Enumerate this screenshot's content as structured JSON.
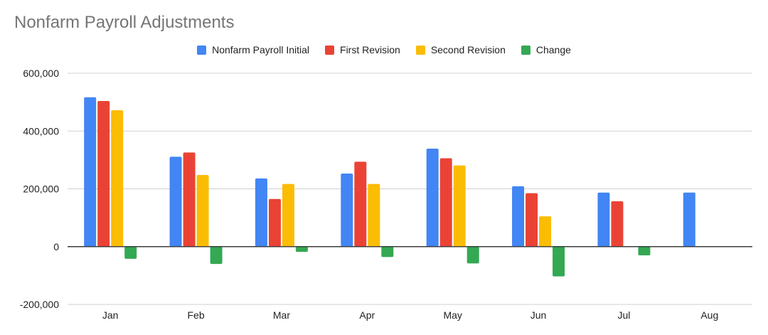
{
  "chart_data": {
    "type": "bar",
    "title": "Nonfarm Payroll Adjustments",
    "xlabel": "",
    "ylabel": "",
    "categories": [
      "Jan",
      "Feb",
      "Mar",
      "Apr",
      "May",
      "Jun",
      "Jul",
      "Aug"
    ],
    "ylim": [
      -200000,
      600000
    ],
    "yticks": [
      -200000,
      0,
      200000,
      400000,
      600000
    ],
    "ytick_labels": [
      "-200,000",
      "0",
      "200,000",
      "400,000",
      "600,000"
    ],
    "grid": true,
    "legend_position": "top",
    "series": [
      {
        "name": "Nonfarm Payroll Initial",
        "color": "#4285F4",
        "values": [
          517000,
          311000,
          236000,
          253000,
          339000,
          209000,
          187000,
          187000
        ]
      },
      {
        "name": "First Revision",
        "color": "#EA4335",
        "values": [
          504000,
          326000,
          165000,
          294000,
          306000,
          185000,
          157000,
          null
        ]
      },
      {
        "name": "Second Revision",
        "color": "#FBBC04",
        "values": [
          472000,
          248000,
          217000,
          217000,
          281000,
          105000,
          null,
          null
        ]
      },
      {
        "name": "Change",
        "color": "#34A853",
        "values": [
          -42000,
          -60000,
          -18000,
          -36000,
          -58000,
          -103000,
          -30000,
          null
        ]
      }
    ]
  }
}
